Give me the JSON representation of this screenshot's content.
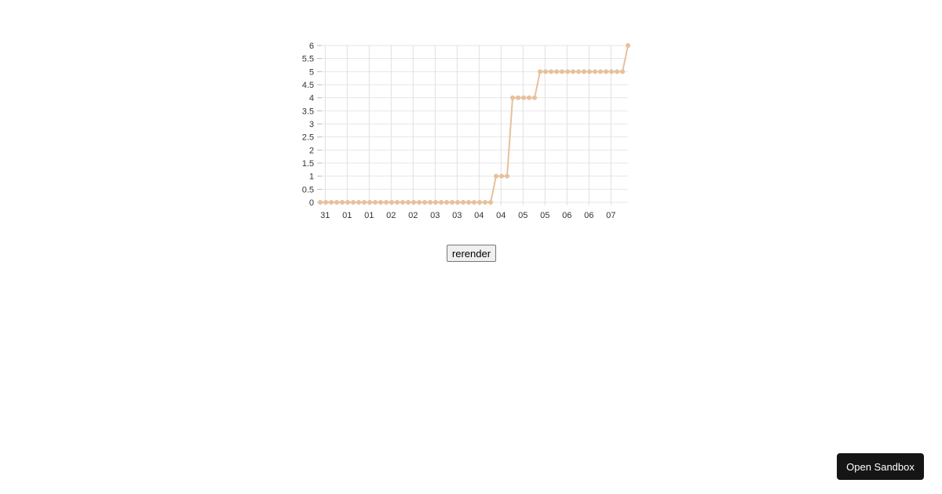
{
  "chart_data": {
    "type": "line",
    "title": "",
    "xlabel": "",
    "ylabel": "",
    "ylim": [
      0,
      6
    ],
    "y_ticks": [
      "0",
      "0.5",
      "1",
      "1.5",
      "2",
      "2.5",
      "3",
      "3.5",
      "4",
      "4.5",
      "5",
      "5.5",
      "6"
    ],
    "x_ticks": [
      "31",
      "01",
      "01",
      "02",
      "02",
      "03",
      "03",
      "04",
      "04",
      "05",
      "05",
      "06",
      "06",
      "07"
    ],
    "grid": true,
    "line_color": "#e8c09c",
    "values": [
      0,
      0,
      0,
      0,
      0,
      0,
      0,
      0,
      0,
      0,
      0,
      0,
      0,
      0,
      0,
      0,
      0,
      0,
      0,
      0,
      0,
      0,
      0,
      0,
      0,
      0,
      0,
      0,
      0,
      0,
      0,
      0,
      1,
      1,
      1,
      4,
      4,
      4,
      4,
      4,
      5,
      5,
      5,
      5,
      5,
      5,
      5,
      5,
      5,
      5,
      5,
      5,
      5,
      5,
      5,
      5,
      6
    ]
  },
  "controls": {
    "rerender_label": "rerender",
    "open_sandbox_label": "Open Sandbox"
  }
}
